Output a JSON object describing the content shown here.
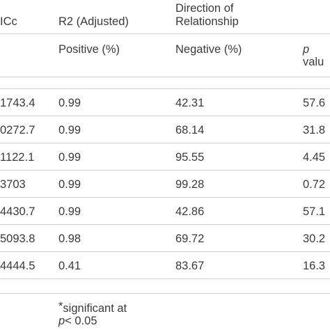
{
  "header": {
    "col_aicc": "ICc",
    "col_r2": "R2 (Adjusted)",
    "col_direction_line1": "Direction of",
    "col_direction_line2": "Relationship",
    "sub_positive": "Positive (%)",
    "sub_negative": "Negative (%)",
    "sub_p_symbol": "p",
    "sub_p_rest": "valu"
  },
  "rows": [
    {
      "aicc": "1743.4",
      "r2": "0.99",
      "negative": "42.31",
      "p": "57.6"
    },
    {
      "aicc": "0272.7",
      "r2": "0.99",
      "negative": "68.14",
      "p": "31.8"
    },
    {
      "aicc": "1122.1",
      "r2": "0.99",
      "negative": "95.55",
      "p": "4.45"
    },
    {
      "aicc": "3703",
      "r2": "0.99",
      "negative": "99.28",
      "p": "0.72"
    },
    {
      "aicc": "4430.7",
      "r2": "0.99",
      "negative": "42.86",
      "p": "57.1"
    },
    {
      "aicc": "5093.8",
      "r2": "0.98",
      "negative": "69.72",
      "p": "30.2"
    },
    {
      "aicc": "4444.5",
      "r2": "0.41",
      "negative": "83.67",
      "p": "16.3"
    }
  ],
  "footnote": {
    "marker": "*",
    "line1": "significant at",
    "p_symbol": "p",
    "line2_rest": "< 0.05"
  }
}
